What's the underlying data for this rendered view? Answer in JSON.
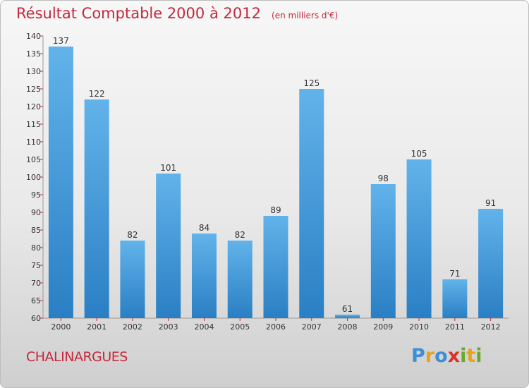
{
  "title": "Résultat Comptable 2000 à 2012",
  "unit_label": "(en milliers d'€)",
  "town": "CHALINARGUES",
  "logo": {
    "text": "Proxiti",
    "letters": [
      {
        "ch": "P",
        "color": "#3b8fd8"
      },
      {
        "ch": "r",
        "color": "#e8a21c"
      },
      {
        "ch": "o",
        "color": "#3b8fd8"
      },
      {
        "ch": "x",
        "color": "#d9342b"
      },
      {
        "ch": "i",
        "color": "#6aaa2a"
      },
      {
        "ch": "t",
        "color": "#e8a21c"
      },
      {
        "ch": "i",
        "color": "#6aaa2a"
      }
    ]
  },
  "colors": {
    "title": "#c4283c",
    "bar_top": "#62b3ea",
    "bar_bottom": "#2a7fc4",
    "tick_mark": "#c4283c",
    "text": "#333333"
  },
  "chart_data": {
    "type": "bar",
    "categories": [
      "2000",
      "2001",
      "2002",
      "2003",
      "2004",
      "2005",
      "2006",
      "2007",
      "2008",
      "2009",
      "2010",
      "2011",
      "2012"
    ],
    "values": [
      137,
      122,
      82,
      101,
      84,
      82,
      89,
      125,
      61,
      98,
      105,
      71,
      91
    ],
    "title": "Résultat Comptable 2000 à 2012",
    "xlabel": "",
    "ylabel": "",
    "ylim": [
      60,
      140
    ],
    "yticks": [
      60,
      65,
      70,
      75,
      80,
      85,
      90,
      95,
      100,
      105,
      110,
      115,
      120,
      125,
      130,
      135,
      140
    ],
    "grid": false
  }
}
